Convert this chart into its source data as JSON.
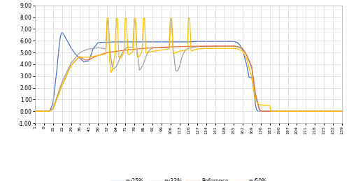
{
  "xlim": [
    1,
    239
  ],
  "ylim": [
    -1.0,
    9.0
  ],
  "yticks": [
    -1.0,
    0.0,
    1.0,
    2.0,
    3.0,
    4.0,
    5.0,
    6.0,
    7.0,
    8.0,
    9.0
  ],
  "xtick_values": [
    1,
    8,
    15,
    22,
    29,
    36,
    43,
    50,
    57,
    64,
    71,
    78,
    85,
    92,
    99,
    106,
    113,
    120,
    127,
    134,
    141,
    148,
    155,
    162,
    169,
    176,
    183,
    190,
    197,
    204,
    211,
    218,
    225,
    232,
    239
  ],
  "colors": {
    "Reference": "#E8703A",
    "pv50%": "#FFC000",
    "pv33%": "#A0A0A0",
    "pv25%": "#4472C4"
  },
  "background_color": "#FFFFFF",
  "grid_color": "#D0D0D0"
}
